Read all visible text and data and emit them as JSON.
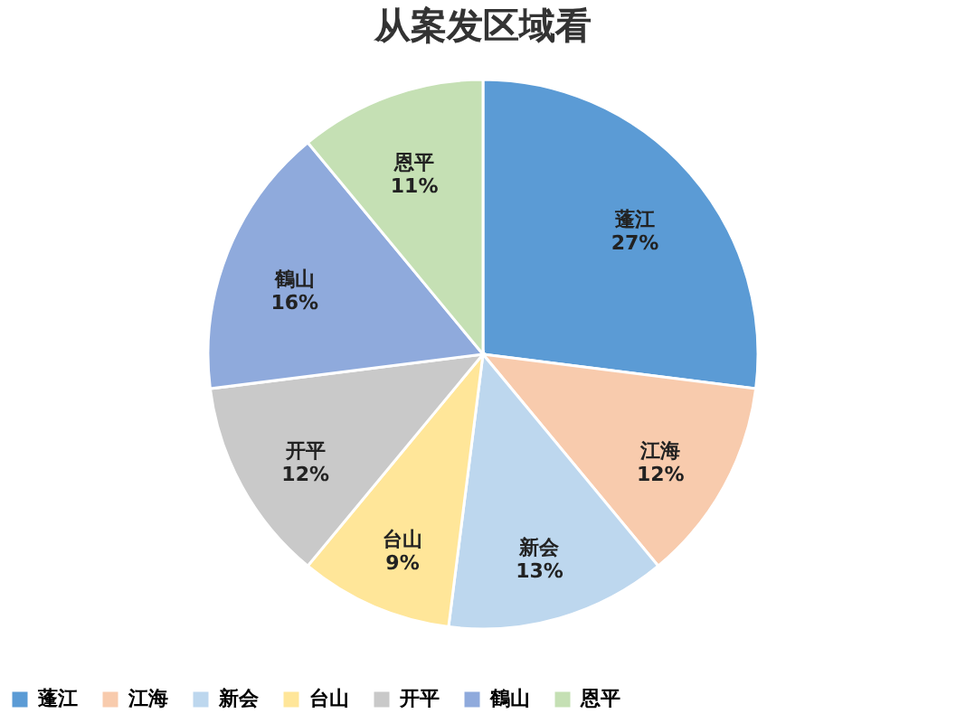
{
  "chart_data": {
    "type": "pie",
    "title": "从案发区域看",
    "categories": [
      "蓬江",
      "江海",
      "新会",
      "台山",
      "开平",
      "鶴山",
      "恩平"
    ],
    "values": [
      27,
      12,
      13,
      9,
      12,
      16,
      11
    ],
    "value_labels": [
      "27%",
      "12%",
      "13%",
      "9%",
      "12%",
      "16%",
      "11%"
    ],
    "colors": [
      "#5b9bd5",
      "#f8cbad",
      "#bdd7ee",
      "#ffe699",
      "#c9c9c9",
      "#8faadc",
      "#c5e0b4"
    ],
    "legend": "bottom"
  }
}
